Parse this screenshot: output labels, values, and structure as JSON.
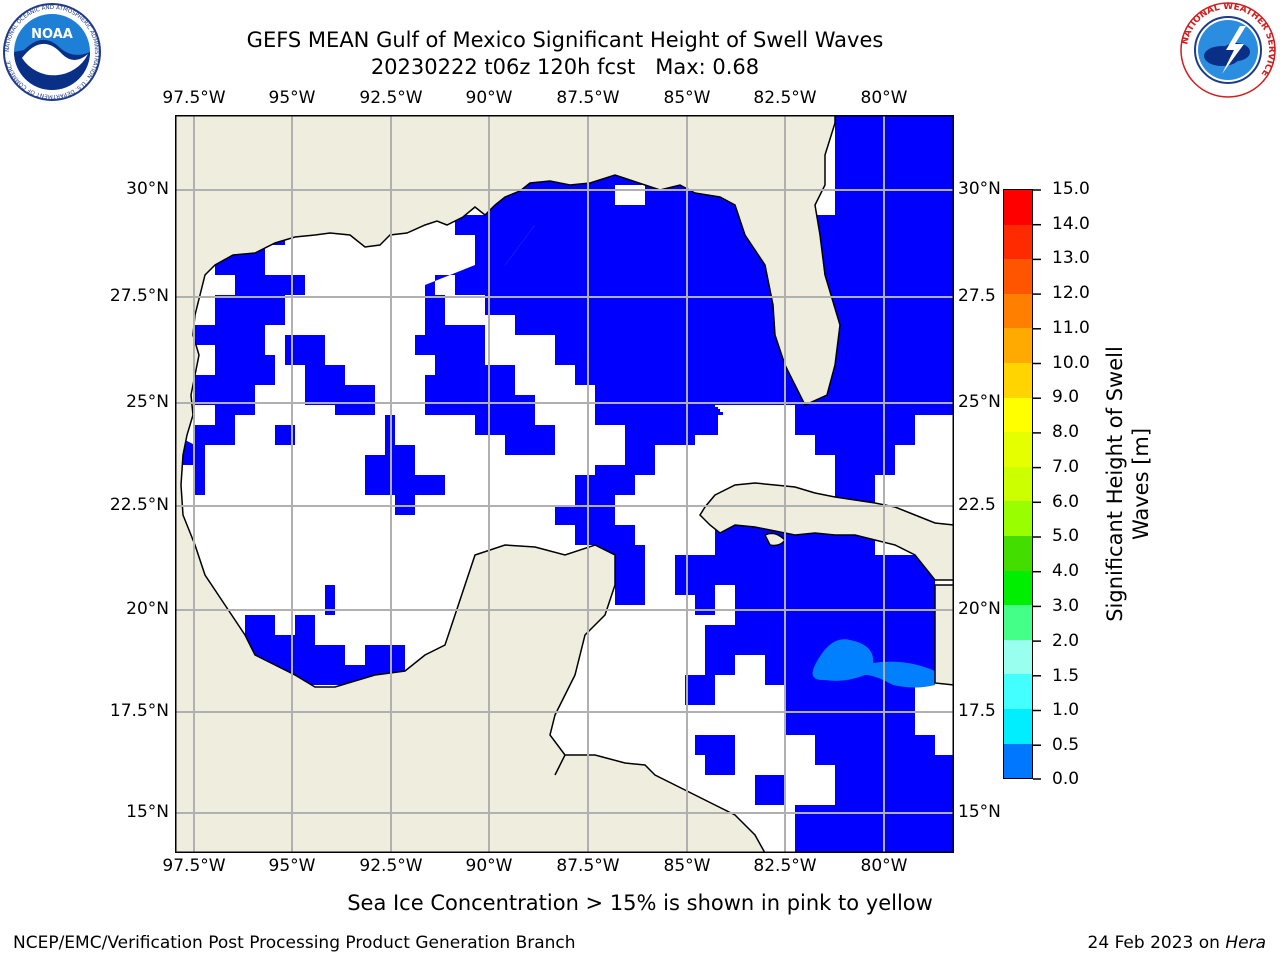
{
  "header": {
    "title_line1": "GEFS MEAN Gulf of Mexico Significant Height of Swell Waves",
    "title_line2": "20230222 t06z 120h fcst   Max: 0.68"
  },
  "logos": {
    "left": "NOAA",
    "left_ring_text": "NATIONAL OCEANIC AND ATMOSPHERIC ADMINISTRATION · U.S. DEPARTMENT OF COMMERCE",
    "right_ring_text": "NATIONAL WEATHER SERVICE"
  },
  "map": {
    "lon_labels": [
      "97.5°W",
      "95°W",
      "92.5°W",
      "90°W",
      "87.5°W",
      "85°W",
      "82.5°W",
      "80°W"
    ],
    "lat_labels_left": [
      "30°N",
      "27.5°N",
      "25°N",
      "22.5°N",
      "20°N",
      "17.5°N",
      "15°N"
    ],
    "lat_labels_right": [
      "30°N",
      "27.5",
      "25°N",
      "22.5",
      "20°N",
      "17.5",
      "15°N"
    ],
    "colors": {
      "land": "#efedde",
      "ocean_low": "#0000ff",
      "ocean_mid": "#0077ff",
      "grid": "#b0b0b0"
    }
  },
  "colorbar": {
    "label_line1": "Significant Height of Swell",
    "label_line2": "Waves [m]",
    "ticks": [
      "15.0",
      "14.0",
      "13.0",
      "12.0",
      "11.0",
      "10.0",
      "9.0",
      "8.0",
      "7.0",
      "6.0",
      "5.0",
      "4.0",
      "3.0",
      "2.0",
      "1.5",
      "1.0",
      "0.5",
      "0.0"
    ],
    "colors": [
      "#ff0000",
      "#ff2a00",
      "#ff5500",
      "#ff7f00",
      "#ffaa00",
      "#ffd400",
      "#ffff00",
      "#e6ff00",
      "#ccff00",
      "#99ff00",
      "#44dd00",
      "#00ee00",
      "#44ff88",
      "#99ffee",
      "#44ffff",
      "#00eeff",
      "#0077ff",
      "#0000ff"
    ]
  },
  "footer": {
    "note": "Sea Ice Concentration > 15% is shown in pink to yellow",
    "left": "NCEP/EMC/Verification Post Processing Product Generation Branch",
    "right_prefix": "24 Feb 2023 on ",
    "right_host": "Hera"
  }
}
